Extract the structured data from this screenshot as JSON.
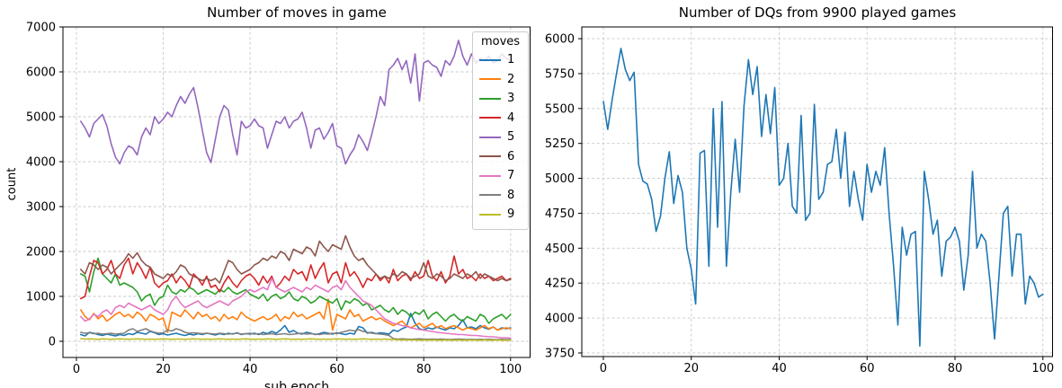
{
  "figure": {
    "background": "#ffffff"
  },
  "chart_data": [
    {
      "type": "line",
      "title": "Number of moves in game",
      "xlabel": "sub epoch",
      "ylabel": "count",
      "legend_title": "moves",
      "legend_position": "upper right",
      "grid": "dashed",
      "xticks": [
        0,
        20,
        40,
        60,
        80,
        100
      ],
      "yticks": [
        0,
        1000,
        2000,
        3000,
        4000,
        5000,
        6000,
        7000
      ],
      "xlim": [
        -3.1,
        104.6
      ],
      "ylim": [
        -360,
        7000
      ],
      "x_start": 1,
      "x_step": 1,
      "series": [
        {
          "name": "1",
          "color": "#1f77b4",
          "values": [
            150,
            120,
            200,
            180,
            150,
            130,
            160,
            140,
            120,
            150,
            130,
            170,
            150,
            200,
            180,
            160,
            220,
            190,
            150,
            170,
            140,
            160,
            180,
            150,
            130,
            160,
            140,
            170,
            150,
            180,
            160,
            140,
            170,
            150,
            180,
            160,
            190,
            150,
            170,
            160,
            180,
            150,
            200,
            170,
            220,
            180,
            250,
            350,
            200,
            240,
            180,
            160,
            200,
            180,
            150,
            170,
            200,
            180,
            160,
            190,
            170,
            150,
            180,
            160,
            330,
            300,
            180,
            200,
            170,
            190,
            180,
            160,
            250,
            220,
            280,
            320,
            620,
            400,
            280,
            250,
            300,
            270,
            320,
            280,
            250,
            300,
            280,
            350,
            480,
            300,
            320,
            280,
            350,
            300,
            270,
            320,
            250,
            300,
            280,
            300
          ]
        },
        {
          "name": "2",
          "color": "#ff7f0e",
          "values": [
            700,
            550,
            480,
            620,
            500,
            580,
            450,
            520,
            600,
            650,
            550,
            600,
            520,
            650,
            580,
            450,
            600,
            550,
            480,
            520,
            200,
            650,
            600,
            550,
            700,
            600,
            500,
            650,
            550,
            600,
            500,
            550,
            450,
            600,
            500,
            550,
            480,
            650,
            550,
            500,
            450,
            500,
            550,
            480,
            520,
            600,
            450,
            550,
            500,
            650,
            550,
            600,
            500,
            550,
            600,
            650,
            500,
            940,
            250,
            600,
            550,
            500,
            700,
            550,
            600,
            450,
            500,
            550,
            480,
            520,
            450,
            400,
            350,
            400,
            450,
            350,
            300,
            350,
            400,
            300,
            350,
            400,
            300,
            350,
            280,
            320,
            350,
            300,
            250,
            300,
            280,
            250,
            300,
            350,
            280,
            320,
            250,
            280,
            300,
            280
          ]
        },
        {
          "name": "3",
          "color": "#2ca02c",
          "values": [
            1500,
            1450,
            1100,
            1550,
            1850,
            1500,
            1400,
            1300,
            1500,
            1250,
            1300,
            1250,
            1200,
            1100,
            900,
            1000,
            1050,
            800,
            950,
            1000,
            1250,
            1100,
            1050,
            1150,
            1100,
            1200,
            1150,
            1050,
            1100,
            1150,
            1100,
            1050,
            1150,
            1100,
            1200,
            1100,
            1050,
            1100,
            1150,
            1050,
            1000,
            950,
            1050,
            900,
            1000,
            1050,
            950,
            1000,
            1100,
            950,
            900,
            1000,
            950,
            850,
            900,
            1000,
            950,
            900,
            850,
            950,
            700,
            900,
            850,
            950,
            900,
            800,
            850,
            700,
            750,
            800,
            700,
            650,
            750,
            600,
            700,
            650,
            550,
            650,
            600,
            700,
            500,
            600,
            650,
            550,
            450,
            550,
            600,
            500,
            450,
            550,
            500,
            450,
            600,
            550,
            400,
            500,
            550,
            600,
            500,
            600
          ]
        },
        {
          "name": "4",
          "color": "#d62728",
          "values": [
            950,
            1000,
            1450,
            1800,
            1750,
            1500,
            1600,
            1800,
            1500,
            1400,
            1700,
            1850,
            1500,
            1750,
            1600,
            1400,
            1650,
            1300,
            1200,
            1300,
            1350,
            1500,
            1300,
            1450,
            1350,
            1200,
            1500,
            1400,
            1250,
            1450,
            1200,
            1250,
            1100,
            1300,
            1450,
            1300,
            1200,
            1350,
            1450,
            1500,
            1400,
            1250,
            1450,
            1300,
            1450,
            1200,
            1300,
            1450,
            1350,
            1600,
            1500,
            1550,
            1350,
            1700,
            1400,
            1600,
            1750,
            1300,
            1500,
            1550,
            1300,
            1750,
            1450,
            1550,
            1400,
            1200,
            1400,
            1350,
            1500,
            1350,
            1450,
            1300,
            1600,
            1350,
            1450,
            1500,
            1350,
            1550,
            1400,
            1450,
            1800,
            1450,
            1350,
            1550,
            1300,
            1450,
            1900,
            1500,
            1600,
            1400,
            1450,
            1350,
            1500,
            1400,
            1450,
            1350,
            1400,
            1450,
            1350,
            1400
          ]
        },
        {
          "name": "5",
          "color": "#9467bd",
          "values": [
            4900,
            4750,
            4550,
            4850,
            4950,
            5050,
            4800,
            4400,
            4100,
            3950,
            4200,
            4350,
            4300,
            4150,
            4550,
            4750,
            4600,
            5000,
            4850,
            4950,
            5100,
            5000,
            5250,
            5450,
            5300,
            5500,
            5650,
            5200,
            4700,
            4200,
            3980,
            4500,
            5000,
            5250,
            5150,
            4600,
            4150,
            4900,
            4750,
            4800,
            4950,
            4800,
            4750,
            4300,
            4600,
            4900,
            4850,
            5000,
            4750,
            4900,
            4950,
            5100,
            4750,
            4300,
            4700,
            4750,
            4500,
            4650,
            4850,
            4350,
            4300,
            3950,
            4150,
            4300,
            4600,
            4450,
            4250,
            4600,
            5000,
            5450,
            5250,
            6050,
            6150,
            6300,
            6050,
            6250,
            5750,
            6400,
            5350,
            6200,
            6250,
            6150,
            6100,
            5900,
            6250,
            6150,
            6350,
            6700,
            6350,
            6150,
            6400,
            6200,
            6300,
            6250,
            6350,
            6200,
            6250,
            6400,
            6300,
            6250
          ]
        },
        {
          "name": "6",
          "color": "#8c564b",
          "values": [
            1600,
            1500,
            1750,
            1700,
            1600,
            1700,
            1650,
            1500,
            1600,
            1700,
            1800,
            1950,
            1850,
            1970,
            1800,
            1700,
            1650,
            1500,
            1450,
            1400,
            1500,
            1450,
            1550,
            1700,
            1650,
            1500,
            1450,
            1400,
            1350,
            1400,
            1350,
            1400,
            1300,
            1550,
            1800,
            1750,
            1600,
            1500,
            1550,
            1600,
            1700,
            1750,
            1850,
            1800,
            1900,
            1850,
            2000,
            1950,
            1800,
            2050,
            2000,
            1950,
            2100,
            2050,
            1900,
            2230,
            2100,
            2000,
            2150,
            2100,
            2050,
            2350,
            2100,
            1900,
            1800,
            1850,
            1700,
            1600,
            1500,
            1400,
            1450,
            1400,
            1500,
            1450,
            1550,
            1500,
            1400,
            1450,
            1500,
            1750,
            1450,
            1400,
            1500,
            1450,
            1350,
            1400,
            1500,
            1450,
            1400,
            1500,
            1450,
            1550,
            1400,
            1500,
            1450,
            1400,
            1350,
            1400,
            1350,
            1380
          ]
        },
        {
          "name": "7",
          "color": "#e377c2",
          "values": [
            550,
            450,
            500,
            600,
            550,
            650,
            700,
            600,
            750,
            800,
            750,
            850,
            800,
            750,
            700,
            750,
            800,
            700,
            650,
            600,
            700,
            900,
            1000,
            850,
            750,
            800,
            850,
            900,
            800,
            750,
            800,
            850,
            900,
            850,
            800,
            900,
            950,
            1000,
            1100,
            1150,
            1100,
            1150,
            1200,
            1150,
            1400,
            1200,
            1150,
            1100,
            1150,
            1200,
            1150,
            1100,
            1200,
            1150,
            1250,
            1200,
            1150,
            1100,
            1200,
            1240,
            1150,
            1350,
            1200,
            1100,
            1000,
            900,
            850,
            800,
            700,
            600,
            500,
            450,
            400,
            380,
            350,
            330,
            300,
            280,
            260,
            250,
            230,
            220,
            200,
            190,
            180,
            170,
            160,
            150,
            150,
            140,
            130,
            130,
            120,
            110,
            100,
            100,
            90,
            80,
            80,
            70
          ]
        },
        {
          "name": "8",
          "color": "#7f7f7f",
          "values": [
            200,
            180,
            190,
            170,
            180,
            160,
            170,
            180,
            160,
            170,
            180,
            250,
            280,
            220,
            250,
            280,
            230,
            200,
            180,
            190,
            250,
            230,
            280,
            250,
            200,
            180,
            190,
            180,
            170,
            180,
            170,
            160,
            180,
            170,
            160,
            170,
            180,
            160,
            170,
            180,
            160,
            170,
            150,
            160,
            170,
            150,
            160,
            170,
            150,
            160,
            170,
            180,
            160,
            170,
            160,
            150,
            170,
            160,
            180,
            170,
            200,
            220,
            250,
            230,
            260,
            220,
            200,
            180,
            170,
            160,
            150,
            130,
            60,
            50,
            55,
            50,
            45,
            50,
            55,
            50,
            45,
            50,
            45,
            50,
            45,
            40,
            45,
            50,
            45,
            40,
            45,
            40,
            45,
            40,
            45,
            40,
            40,
            45,
            40,
            40
          ]
        },
        {
          "name": "9",
          "color": "#bcbd22",
          "values": [
            60,
            50,
            55,
            50,
            45,
            55,
            50,
            45,
            50,
            55,
            50,
            45,
            50,
            55,
            50,
            45,
            50,
            45,
            50,
            55,
            50,
            45,
            50,
            50,
            45,
            50,
            55,
            50,
            45,
            50,
            45,
            50,
            55,
            50,
            45,
            50,
            45,
            50,
            55,
            50,
            45,
            50,
            45,
            55,
            50,
            45,
            50,
            55,
            50,
            45,
            50,
            45,
            50,
            55,
            50,
            45,
            50,
            45,
            50,
            55,
            50,
            45,
            50,
            45,
            50,
            55,
            50,
            45,
            50,
            45,
            50,
            45,
            40,
            35,
            30,
            35,
            30,
            30,
            25,
            30,
            25,
            30,
            25,
            25,
            30,
            25,
            25,
            30,
            25,
            25,
            30,
            25,
            25,
            30,
            25,
            25,
            30,
            25,
            25,
            25
          ]
        }
      ]
    },
    {
      "type": "line",
      "title": "Number of DQs from 9900 played games",
      "xlabel": "",
      "ylabel": "",
      "grid": "dashed",
      "xticks": [
        0,
        20,
        40,
        60,
        80,
        100
      ],
      "yticks": [
        3750,
        4000,
        4250,
        4500,
        4750,
        5000,
        5250,
        5500,
        5750,
        6000
      ],
      "xlim": [
        -4.9,
        102.3
      ],
      "ylim": [
        3724,
        6084
      ],
      "x_start": 0,
      "x_step": 1,
      "series": [
        {
          "name": "DQs",
          "color": "#1f77b4",
          "values": [
            5550,
            5350,
            5560,
            5750,
            5930,
            5780,
            5700,
            5760,
            5100,
            4980,
            4960,
            4850,
            4620,
            4730,
            5000,
            5190,
            4820,
            5020,
            4900,
            4500,
            4350,
            4100,
            5180,
            5200,
            4370,
            5500,
            4650,
            5550,
            4370,
            4900,
            5280,
            4900,
            5520,
            5850,
            5600,
            5800,
            5300,
            5600,
            5320,
            5650,
            4950,
            5000,
            5250,
            4800,
            4750,
            5450,
            4700,
            4750,
            5530,
            4850,
            4900,
            5100,
            5120,
            5350,
            5000,
            5330,
            4800,
            5050,
            4850,
            4700,
            5100,
            4900,
            5050,
            4950,
            5220,
            4750,
            4380,
            3950,
            4650,
            4450,
            4600,
            4620,
            3800,
            5050,
            4850,
            4600,
            4700,
            4300,
            4550,
            4580,
            4650,
            4550,
            4200,
            4450,
            5050,
            4500,
            4600,
            4550,
            4250,
            3850,
            4300,
            4750,
            4800,
            4300,
            4600,
            4600,
            4100,
            4300,
            4250,
            4150,
            4170
          ]
        }
      ]
    }
  ]
}
